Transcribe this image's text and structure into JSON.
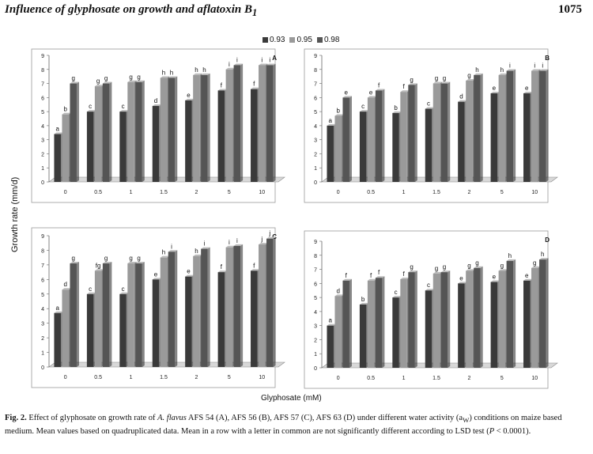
{
  "header": {
    "title": "Influence of glyphosate on growth and aflatoxin B",
    "title_sub": "1",
    "page_number": "1075"
  },
  "legend": {
    "items": [
      {
        "label": "0.93",
        "color": "#3a3a3a"
      },
      {
        "label": "0.95",
        "color": "#9a9a9a"
      },
      {
        "label": "0.98",
        "color": "#555555"
      }
    ]
  },
  "axes": {
    "ylabel": "Growth rate (mm/d)",
    "xlabel": "Glyphosate (mM)"
  },
  "caption": {
    "fig": "Fig. 2.",
    "text_a": " Effect of glyphosate on growth rate of ",
    "species": "A. flavus",
    "text_b": " AFS 54 (A), AFS 56 (B), AFS 57 (C), AFS 63 (D) under different water activity (a",
    "sub": "W",
    "text_c": ") conditions on maize based medium. Mean values based on quadruplicated data. Mean in a row with a letter in common are not significantly different according to LSD test (",
    "p": "P",
    "text_d": " < 0.0001)."
  },
  "chart_data": [
    {
      "type": "bar",
      "panel": "A",
      "categories": [
        "0",
        "0.5",
        "1",
        "1.5",
        "2",
        "5",
        "10"
      ],
      "ylim": [
        0,
        9
      ],
      "yticks": [
        0,
        1,
        2,
        3,
        4,
        5,
        6,
        7,
        8,
        9
      ],
      "series": [
        {
          "name": "0.93",
          "values": [
            3.4,
            5.0,
            5.0,
            5.4,
            5.8,
            6.5,
            6.6
          ],
          "letters": [
            "a",
            "c",
            "c",
            "d",
            "e",
            "f",
            "f"
          ]
        },
        {
          "name": "0.95",
          "values": [
            4.8,
            6.8,
            7.1,
            7.4,
            7.6,
            8.0,
            8.3
          ],
          "letters": [
            "b",
            "g",
            "g",
            "h",
            "h",
            "i",
            "i"
          ]
        },
        {
          "name": "0.98",
          "values": [
            7.0,
            7.0,
            7.1,
            7.4,
            7.6,
            8.3,
            8.3
          ],
          "letters": [
            "g",
            "g",
            "g",
            "h",
            "h",
            "i",
            "i"
          ]
        }
      ]
    },
    {
      "type": "bar",
      "panel": "B",
      "categories": [
        "0",
        "0.5",
        "1",
        "1.5",
        "2",
        "5",
        "10"
      ],
      "ylim": [
        0,
        9
      ],
      "yticks": [
        0,
        1,
        2,
        3,
        4,
        5,
        6,
        7,
        8,
        9
      ],
      "series": [
        {
          "name": "0.93",
          "values": [
            4.0,
            5.0,
            4.9,
            5.2,
            5.7,
            6.3,
            6.3
          ],
          "letters": [
            "a",
            "c",
            "b",
            "c",
            "d",
            "e",
            "e"
          ]
        },
        {
          "name": "0.95",
          "values": [
            4.7,
            6.0,
            6.4,
            7.0,
            7.2,
            7.6,
            7.9
          ],
          "letters": [
            "b",
            "e",
            "f",
            "g",
            "g",
            "h",
            "i"
          ]
        },
        {
          "name": "0.98",
          "values": [
            6.0,
            6.5,
            6.9,
            7.0,
            7.6,
            7.9,
            7.9
          ],
          "letters": [
            "e",
            "f",
            "g",
            "g",
            "h",
            "i",
            "i"
          ]
        }
      ]
    },
    {
      "type": "bar",
      "panel": "C",
      "categories": [
        "0",
        "0.5",
        "1",
        "1.5",
        "2",
        "5",
        "10"
      ],
      "ylim": [
        0,
        9
      ],
      "yticks": [
        0,
        1,
        2,
        3,
        4,
        5,
        6,
        7,
        8,
        9
      ],
      "series": [
        {
          "name": "0.93",
          "values": [
            3.7,
            5.0,
            5.0,
            6.0,
            6.2,
            6.5,
            6.6
          ],
          "letters": [
            "a",
            "c",
            "c",
            "e",
            "e",
            "f",
            "f"
          ]
        },
        {
          "name": "0.95",
          "values": [
            5.3,
            6.6,
            7.1,
            7.5,
            7.6,
            8.2,
            8.4
          ],
          "letters": [
            "d",
            "fg",
            "g",
            "h",
            "h",
            "i",
            "j"
          ]
        },
        {
          "name": "0.98",
          "values": [
            7.1,
            7.1,
            7.1,
            7.9,
            8.1,
            8.3,
            8.8
          ],
          "letters": [
            "g",
            "g",
            "g",
            "i",
            "i",
            "i",
            "j"
          ]
        }
      ]
    },
    {
      "type": "bar",
      "panel": "D",
      "categories": [
        "0",
        "0.5",
        "1",
        "1.5",
        "2",
        "5",
        "10"
      ],
      "ylim": [
        0,
        9
      ],
      "yticks": [
        0,
        1,
        2,
        3,
        4,
        5,
        6,
        7,
        8,
        9
      ],
      "series": [
        {
          "name": "0.93",
          "values": [
            3.0,
            4.5,
            5.0,
            5.5,
            6.0,
            6.1,
            6.2
          ],
          "letters": [
            "a",
            "b",
            "c",
            "c",
            "e",
            "e",
            "e"
          ]
        },
        {
          "name": "0.95",
          "values": [
            5.1,
            6.2,
            6.3,
            6.7,
            6.9,
            6.9,
            7.1
          ],
          "letters": [
            "d",
            "f",
            "f",
            "g",
            "g",
            "g",
            "g"
          ]
        },
        {
          "name": "0.98",
          "values": [
            6.2,
            6.4,
            6.8,
            6.8,
            7.1,
            7.6,
            7.7
          ],
          "letters": [
            "f",
            "f",
            "g",
            "g",
            "g",
            "h",
            "h"
          ]
        }
      ]
    }
  ]
}
